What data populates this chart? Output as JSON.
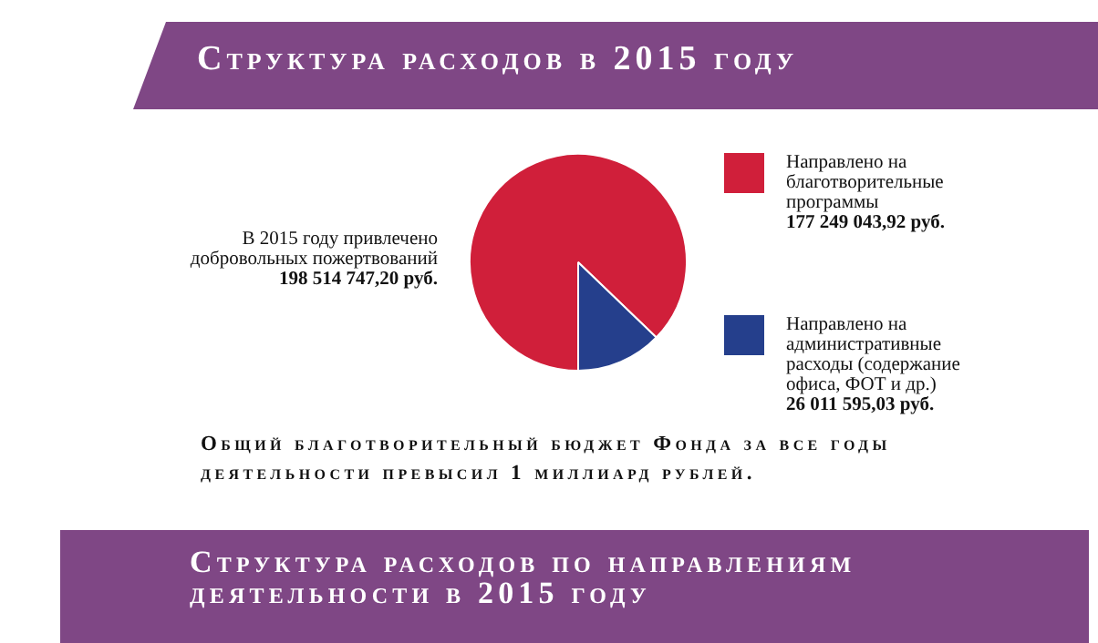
{
  "chart_data": {
    "type": "pie",
    "title": "Структура расходов в 2015 году",
    "categories": [
      "Направлено на благотворительные программы",
      "Направлено на административные расходы (содержание офиса, ФОТ и др.)"
    ],
    "values": [
      177249043.92,
      26011595.03
    ],
    "value_labels": [
      "177 249 043,92 руб.",
      "26 011 595,03 руб."
    ],
    "colors": [
      "#d01f3a",
      "#253f8c"
    ],
    "legend": "right",
    "annotations": [
      "В 2015 году привлечено\nдобровольных пожертвований\n198 514 747,20 руб.",
      "Общий благотворительный бюджет Фонда за все годы\nдеятельности превысил 1 миллиард рублей.",
      "Структура расходов по направлениям\nдеятельности в 2015 году"
    ]
  }
}
